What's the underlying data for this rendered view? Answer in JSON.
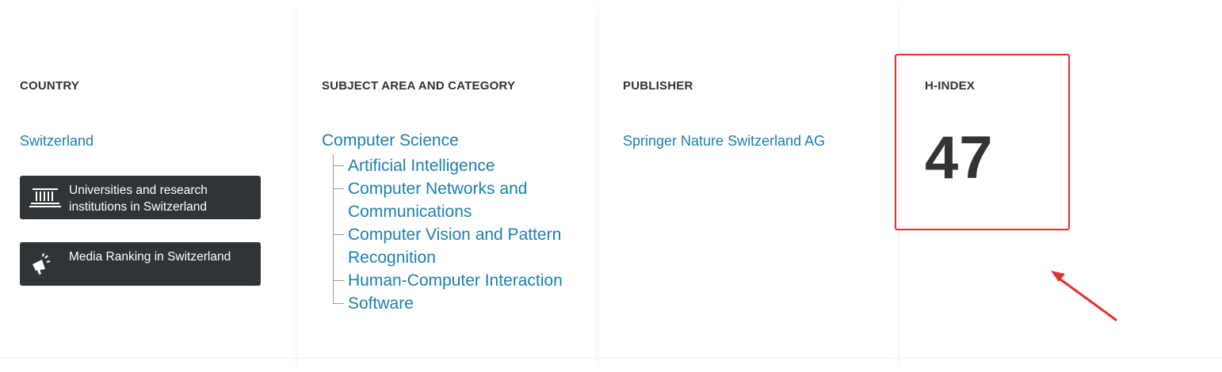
{
  "country": {
    "heading": "COUNTRY",
    "link": "Switzerland",
    "buttons": [
      {
        "label": "Universities and research institutions in Switzerland",
        "icon": "institution-icon"
      },
      {
        "label": "Media Ranking in Switzerland",
        "icon": "megaphone-icon"
      }
    ]
  },
  "subject": {
    "heading": "SUBJECT AREA AND CATEGORY",
    "area": "Computer Science",
    "categories": [
      "Artificial Intelligence",
      "Computer Networks and Communications",
      "Computer Vision and Pattern Recognition",
      "Human-Computer Interaction",
      "Software"
    ]
  },
  "publisher": {
    "heading": "PUBLISHER",
    "name": "Springer Nature Switzerland AG"
  },
  "hindex": {
    "heading": "H-INDEX",
    "value": "47"
  },
  "colors": {
    "link": "#1b7fb0",
    "button_bg": "#2f3436",
    "highlight": "#e0302a",
    "text": "#333333"
  }
}
